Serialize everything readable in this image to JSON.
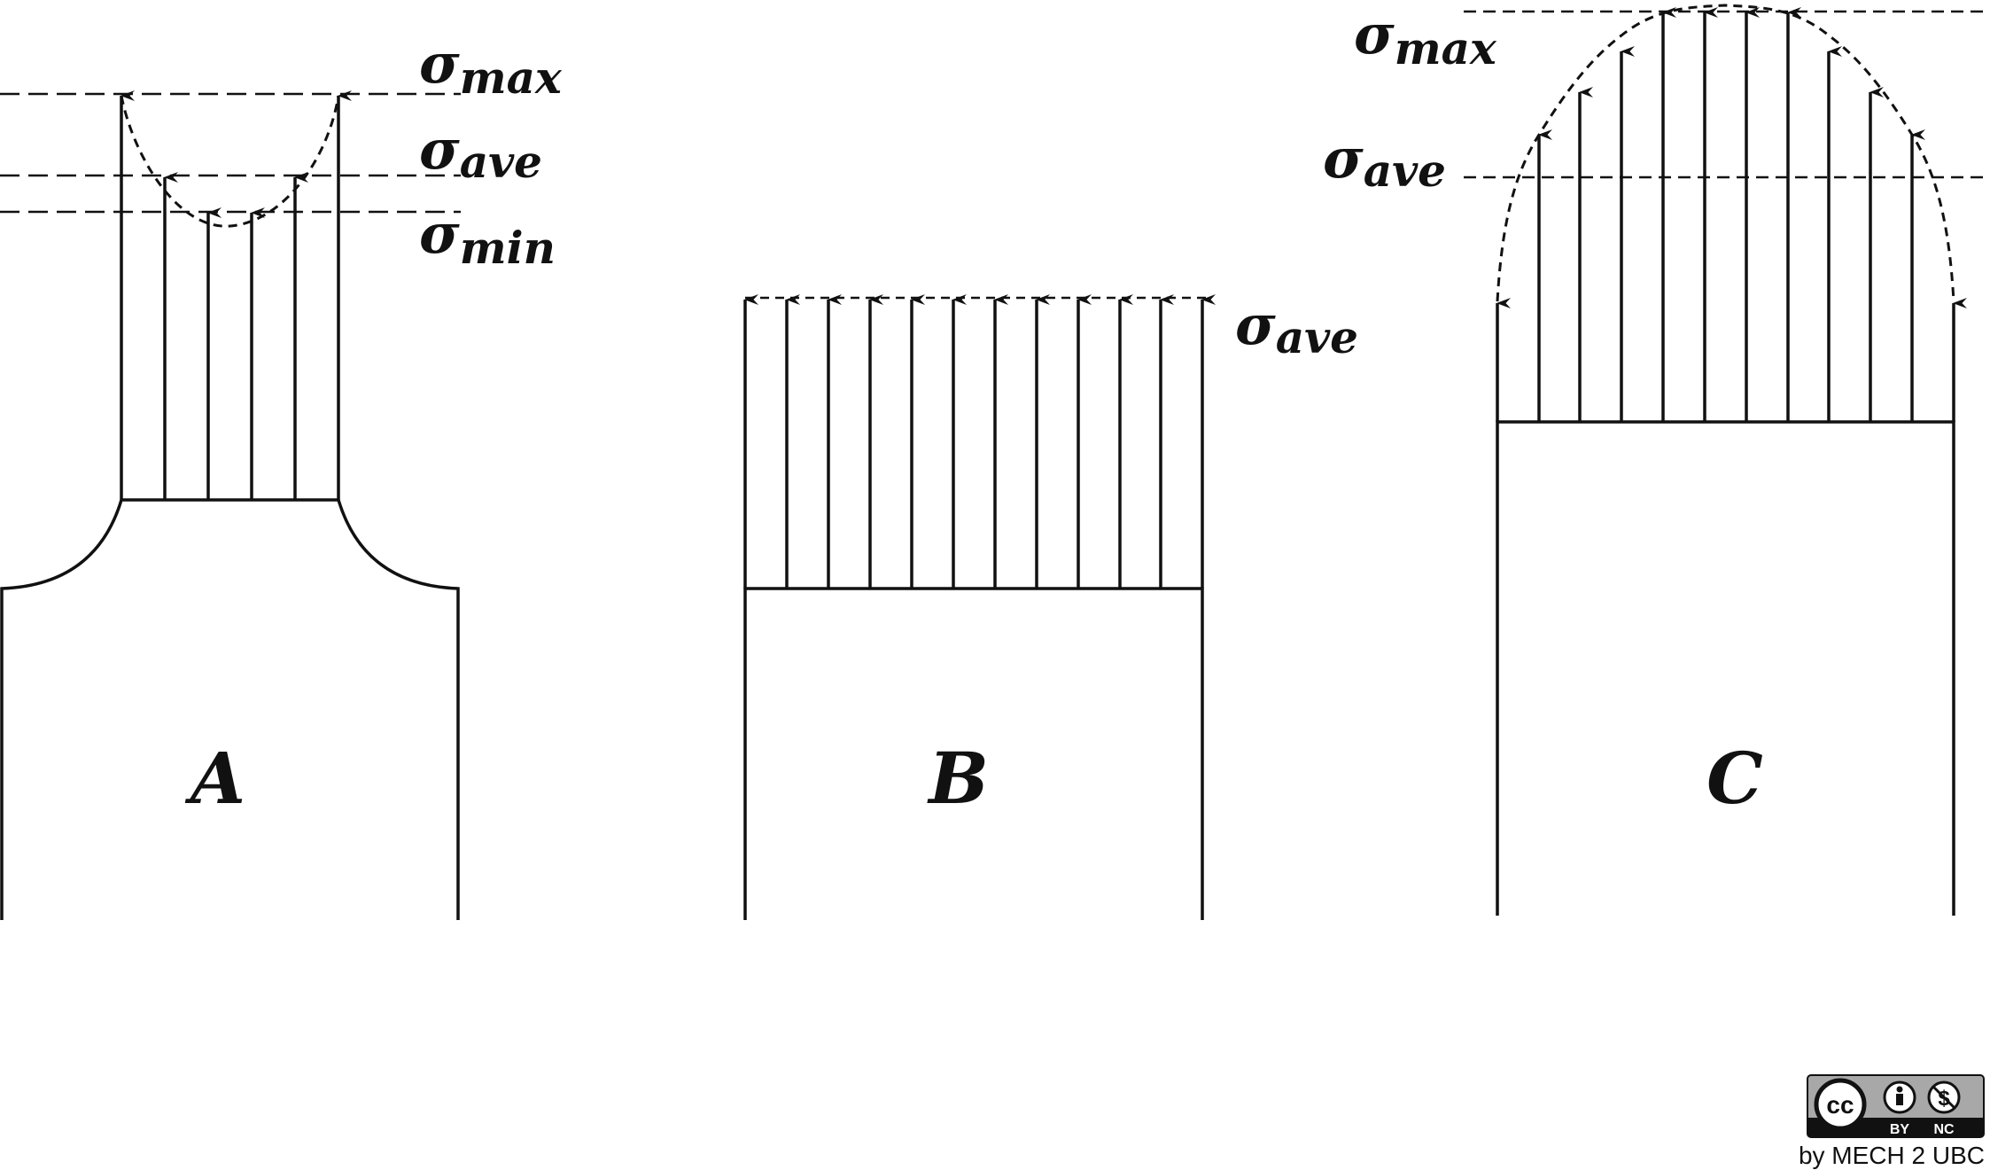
{
  "panels": [
    {
      "label": "A",
      "levels": [
        {
          "symbol": "σ",
          "subscript": "max"
        },
        {
          "symbol": "σ",
          "subscript": "ave"
        },
        {
          "symbol": "σ",
          "subscript": "min"
        }
      ]
    },
    {
      "label": "B",
      "levels": [
        {
          "symbol": "σ",
          "subscript": "ave"
        }
      ]
    },
    {
      "label": "C",
      "levels": [
        {
          "symbol": "σ",
          "subscript": "max"
        },
        {
          "symbol": "σ",
          "subscript": "ave"
        }
      ]
    }
  ],
  "license": {
    "cc": "cc",
    "by": "BY",
    "nc": "NC",
    "attribution": "by MECH 2 UBC"
  },
  "colors": {
    "line": "#111111",
    "badge_bg": "#a8a8a8",
    "badge_bar": "#111111"
  }
}
